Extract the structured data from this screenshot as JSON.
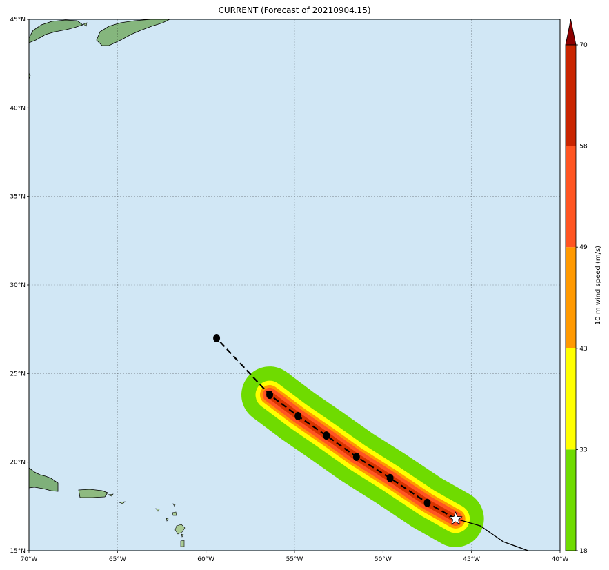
{
  "title": "CURRENT (Forecast of 20210904.15)",
  "map": {
    "extent": {
      "lon": [
        -70,
        -40
      ],
      "lat": [
        15,
        45
      ]
    },
    "ocean_color": "#d1e7f5",
    "grid": true,
    "lon_ticks": [
      {
        "lon": -70,
        "label": "70°W"
      },
      {
        "lon": -65,
        "label": "65°W"
      },
      {
        "lon": -60,
        "label": "60°W"
      },
      {
        "lon": -55,
        "label": "55°W"
      },
      {
        "lon": -50,
        "label": "50°W"
      },
      {
        "lon": -45,
        "label": "45°W"
      },
      {
        "lon": -40,
        "label": "40°W"
      }
    ],
    "lat_ticks": [
      {
        "lat": 45,
        "label": "45°N"
      },
      {
        "lat": 40,
        "label": "40°N"
      },
      {
        "lat": 35,
        "label": "35°N"
      },
      {
        "lat": 30,
        "label": "30°N"
      },
      {
        "lat": 25,
        "label": "25°N"
      },
      {
        "lat": 20,
        "label": "20°N"
      },
      {
        "lat": 15,
        "label": "15°N"
      }
    ]
  },
  "track": {
    "past_track": [
      [
        -45.9,
        16.8
      ],
      [
        -44.5,
        16.4
      ],
      [
        -43.2,
        15.5
      ],
      [
        -41.8,
        15.0
      ]
    ],
    "forecast_points": [
      [
        -45.9,
        16.8
      ],
      [
        -47.5,
        17.7
      ],
      [
        -49.6,
        19.1
      ],
      [
        -51.5,
        20.3
      ],
      [
        -53.2,
        21.5
      ],
      [
        -54.8,
        22.6
      ],
      [
        -56.4,
        23.8
      ],
      [
        -59.4,
        27.0
      ]
    ],
    "current_position": [
      -45.9,
      16.8
    ],
    "swath_bands": [
      {
        "threshold": 18,
        "color": "#6fdb00",
        "halfwidth_deg": 1.6
      },
      {
        "threshold": 33,
        "color": "#ffff00",
        "halfwidth_deg": 0.8
      },
      {
        "threshold": 43,
        "color": "#ff9900",
        "halfwidth_deg": 0.55
      },
      {
        "threshold": 49,
        "color": "#ff5522",
        "halfwidth_deg": 0.4
      },
      {
        "threshold": 58,
        "color": "#d93300",
        "halfwidth_deg": 0.2
      }
    ]
  },
  "colorbar": {
    "label": "10 m wind speed (m/s)",
    "levels": [
      {
        "value": 18,
        "label": "18",
        "color": "#6fdb00"
      },
      {
        "value": 33,
        "label": "33",
        "color": "#ffff00"
      },
      {
        "value": 43,
        "label": "43",
        "color": "#ff9900"
      },
      {
        "value": 49,
        "label": "49",
        "color": "#ff5522"
      },
      {
        "value": 58,
        "label": "58",
        "color": "#c92500"
      },
      {
        "value": 70,
        "label": "70",
        "color": "#8b0000"
      }
    ]
  }
}
